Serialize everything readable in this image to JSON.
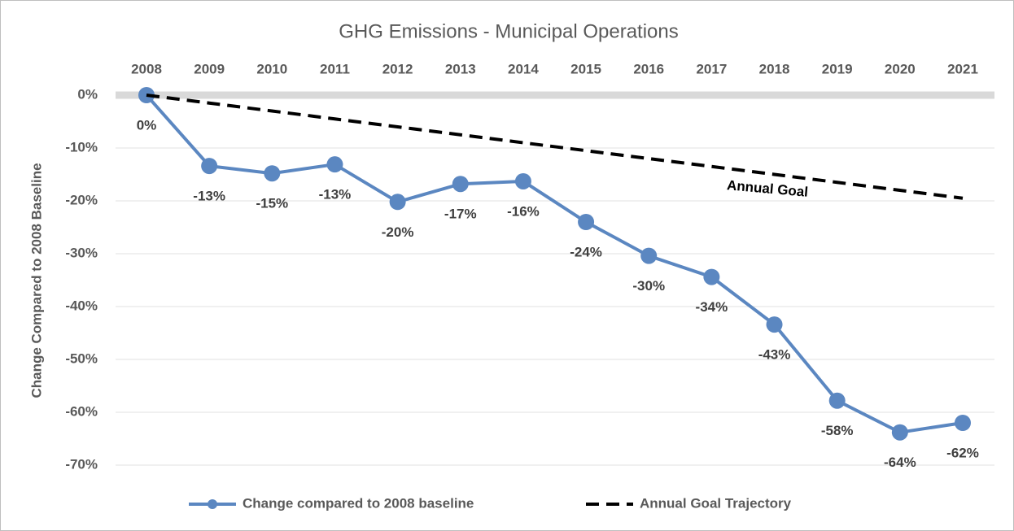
{
  "chart_data": {
    "type": "line",
    "title": "GHG Emissions - Municipal Operations",
    "y_label": "Change Compared to 2008 Baseline",
    "categories": [
      "2008",
      "2009",
      "2010",
      "2011",
      "2012",
      "2013",
      "2014",
      "2015",
      "2016",
      "2017",
      "2018",
      "2019",
      "2020",
      "2021"
    ],
    "series": [
      {
        "name": "Change compared to 2008 baseline",
        "color": "#5b87c1",
        "markers": true,
        "values": [
          0,
          -13.4,
          -14.8,
          -13.1,
          -20.2,
          -16.8,
          -16.3,
          -24.0,
          -30.4,
          -34.4,
          -43.4,
          -57.8,
          -63.8,
          -62.0
        ],
        "value_labels": [
          "0%",
          "-13%",
          "-15%",
          "-13%",
          "-20%",
          "-17%",
          "-16%",
          "-24%",
          "-30%",
          "-34%",
          "-43%",
          "-58%",
          "-64%",
          "-62%"
        ]
      },
      {
        "name": "Annual Goal Trajectory",
        "color": "#000000",
        "dashed": true,
        "values": [
          0,
          -1.5,
          -3,
          -4.5,
          -6,
          -7.5,
          -9,
          -10.5,
          -12,
          -13.5,
          -15,
          -16.5,
          -18,
          -19.5
        ]
      }
    ],
    "annotation": "Annual Goal",
    "ylim": [
      -70,
      0
    ],
    "yticks": [
      {
        "value": 0,
        "label": "0%"
      },
      {
        "value": -10,
        "label": "-10%"
      },
      {
        "value": -20,
        "label": "-20%"
      },
      {
        "value": -30,
        "label": "-30%"
      },
      {
        "value": -40,
        "label": "-40%"
      },
      {
        "value": -50,
        "label": "-50%"
      },
      {
        "value": -60,
        "label": "-60%"
      },
      {
        "value": -70,
        "label": "-70%"
      }
    ],
    "grid": true,
    "legend": "bottom"
  }
}
